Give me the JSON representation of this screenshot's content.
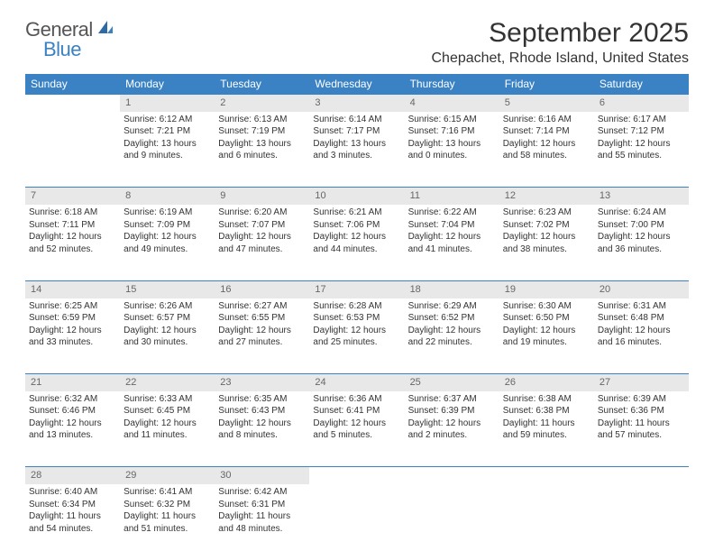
{
  "brand": {
    "part1": "General",
    "part2": "Blue"
  },
  "title": "September 2025",
  "location": "Chepachet, Rhode Island, United States",
  "day_headers": [
    "Sunday",
    "Monday",
    "Tuesday",
    "Wednesday",
    "Thursday",
    "Friday",
    "Saturday"
  ],
  "colors": {
    "header_bg": "#3b82c4",
    "header_text": "#ffffff",
    "daynum_bg": "#e8e8e8",
    "border": "#3b82c4",
    "text": "#333333"
  },
  "weeks": [
    [
      {
        "n": "",
        "sr": "",
        "ss": "",
        "dl": ""
      },
      {
        "n": "1",
        "sr": "Sunrise: 6:12 AM",
        "ss": "Sunset: 7:21 PM",
        "dl": "Daylight: 13 hours and 9 minutes."
      },
      {
        "n": "2",
        "sr": "Sunrise: 6:13 AM",
        "ss": "Sunset: 7:19 PM",
        "dl": "Daylight: 13 hours and 6 minutes."
      },
      {
        "n": "3",
        "sr": "Sunrise: 6:14 AM",
        "ss": "Sunset: 7:17 PM",
        "dl": "Daylight: 13 hours and 3 minutes."
      },
      {
        "n": "4",
        "sr": "Sunrise: 6:15 AM",
        "ss": "Sunset: 7:16 PM",
        "dl": "Daylight: 13 hours and 0 minutes."
      },
      {
        "n": "5",
        "sr": "Sunrise: 6:16 AM",
        "ss": "Sunset: 7:14 PM",
        "dl": "Daylight: 12 hours and 58 minutes."
      },
      {
        "n": "6",
        "sr": "Sunrise: 6:17 AM",
        "ss": "Sunset: 7:12 PM",
        "dl": "Daylight: 12 hours and 55 minutes."
      }
    ],
    [
      {
        "n": "7",
        "sr": "Sunrise: 6:18 AM",
        "ss": "Sunset: 7:11 PM",
        "dl": "Daylight: 12 hours and 52 minutes."
      },
      {
        "n": "8",
        "sr": "Sunrise: 6:19 AM",
        "ss": "Sunset: 7:09 PM",
        "dl": "Daylight: 12 hours and 49 minutes."
      },
      {
        "n": "9",
        "sr": "Sunrise: 6:20 AM",
        "ss": "Sunset: 7:07 PM",
        "dl": "Daylight: 12 hours and 47 minutes."
      },
      {
        "n": "10",
        "sr": "Sunrise: 6:21 AM",
        "ss": "Sunset: 7:06 PM",
        "dl": "Daylight: 12 hours and 44 minutes."
      },
      {
        "n": "11",
        "sr": "Sunrise: 6:22 AM",
        "ss": "Sunset: 7:04 PM",
        "dl": "Daylight: 12 hours and 41 minutes."
      },
      {
        "n": "12",
        "sr": "Sunrise: 6:23 AM",
        "ss": "Sunset: 7:02 PM",
        "dl": "Daylight: 12 hours and 38 minutes."
      },
      {
        "n": "13",
        "sr": "Sunrise: 6:24 AM",
        "ss": "Sunset: 7:00 PM",
        "dl": "Daylight: 12 hours and 36 minutes."
      }
    ],
    [
      {
        "n": "14",
        "sr": "Sunrise: 6:25 AM",
        "ss": "Sunset: 6:59 PM",
        "dl": "Daylight: 12 hours and 33 minutes."
      },
      {
        "n": "15",
        "sr": "Sunrise: 6:26 AM",
        "ss": "Sunset: 6:57 PM",
        "dl": "Daylight: 12 hours and 30 minutes."
      },
      {
        "n": "16",
        "sr": "Sunrise: 6:27 AM",
        "ss": "Sunset: 6:55 PM",
        "dl": "Daylight: 12 hours and 27 minutes."
      },
      {
        "n": "17",
        "sr": "Sunrise: 6:28 AM",
        "ss": "Sunset: 6:53 PM",
        "dl": "Daylight: 12 hours and 25 minutes."
      },
      {
        "n": "18",
        "sr": "Sunrise: 6:29 AM",
        "ss": "Sunset: 6:52 PM",
        "dl": "Daylight: 12 hours and 22 minutes."
      },
      {
        "n": "19",
        "sr": "Sunrise: 6:30 AM",
        "ss": "Sunset: 6:50 PM",
        "dl": "Daylight: 12 hours and 19 minutes."
      },
      {
        "n": "20",
        "sr": "Sunrise: 6:31 AM",
        "ss": "Sunset: 6:48 PM",
        "dl": "Daylight: 12 hours and 16 minutes."
      }
    ],
    [
      {
        "n": "21",
        "sr": "Sunrise: 6:32 AM",
        "ss": "Sunset: 6:46 PM",
        "dl": "Daylight: 12 hours and 13 minutes."
      },
      {
        "n": "22",
        "sr": "Sunrise: 6:33 AM",
        "ss": "Sunset: 6:45 PM",
        "dl": "Daylight: 12 hours and 11 minutes."
      },
      {
        "n": "23",
        "sr": "Sunrise: 6:35 AM",
        "ss": "Sunset: 6:43 PM",
        "dl": "Daylight: 12 hours and 8 minutes."
      },
      {
        "n": "24",
        "sr": "Sunrise: 6:36 AM",
        "ss": "Sunset: 6:41 PM",
        "dl": "Daylight: 12 hours and 5 minutes."
      },
      {
        "n": "25",
        "sr": "Sunrise: 6:37 AM",
        "ss": "Sunset: 6:39 PM",
        "dl": "Daylight: 12 hours and 2 minutes."
      },
      {
        "n": "26",
        "sr": "Sunrise: 6:38 AM",
        "ss": "Sunset: 6:38 PM",
        "dl": "Daylight: 11 hours and 59 minutes."
      },
      {
        "n": "27",
        "sr": "Sunrise: 6:39 AM",
        "ss": "Sunset: 6:36 PM",
        "dl": "Daylight: 11 hours and 57 minutes."
      }
    ],
    [
      {
        "n": "28",
        "sr": "Sunrise: 6:40 AM",
        "ss": "Sunset: 6:34 PM",
        "dl": "Daylight: 11 hours and 54 minutes."
      },
      {
        "n": "29",
        "sr": "Sunrise: 6:41 AM",
        "ss": "Sunset: 6:32 PM",
        "dl": "Daylight: 11 hours and 51 minutes."
      },
      {
        "n": "30",
        "sr": "Sunrise: 6:42 AM",
        "ss": "Sunset: 6:31 PM",
        "dl": "Daylight: 11 hours and 48 minutes."
      },
      {
        "n": "",
        "sr": "",
        "ss": "",
        "dl": ""
      },
      {
        "n": "",
        "sr": "",
        "ss": "",
        "dl": ""
      },
      {
        "n": "",
        "sr": "",
        "ss": "",
        "dl": ""
      },
      {
        "n": "",
        "sr": "",
        "ss": "",
        "dl": ""
      }
    ]
  ]
}
